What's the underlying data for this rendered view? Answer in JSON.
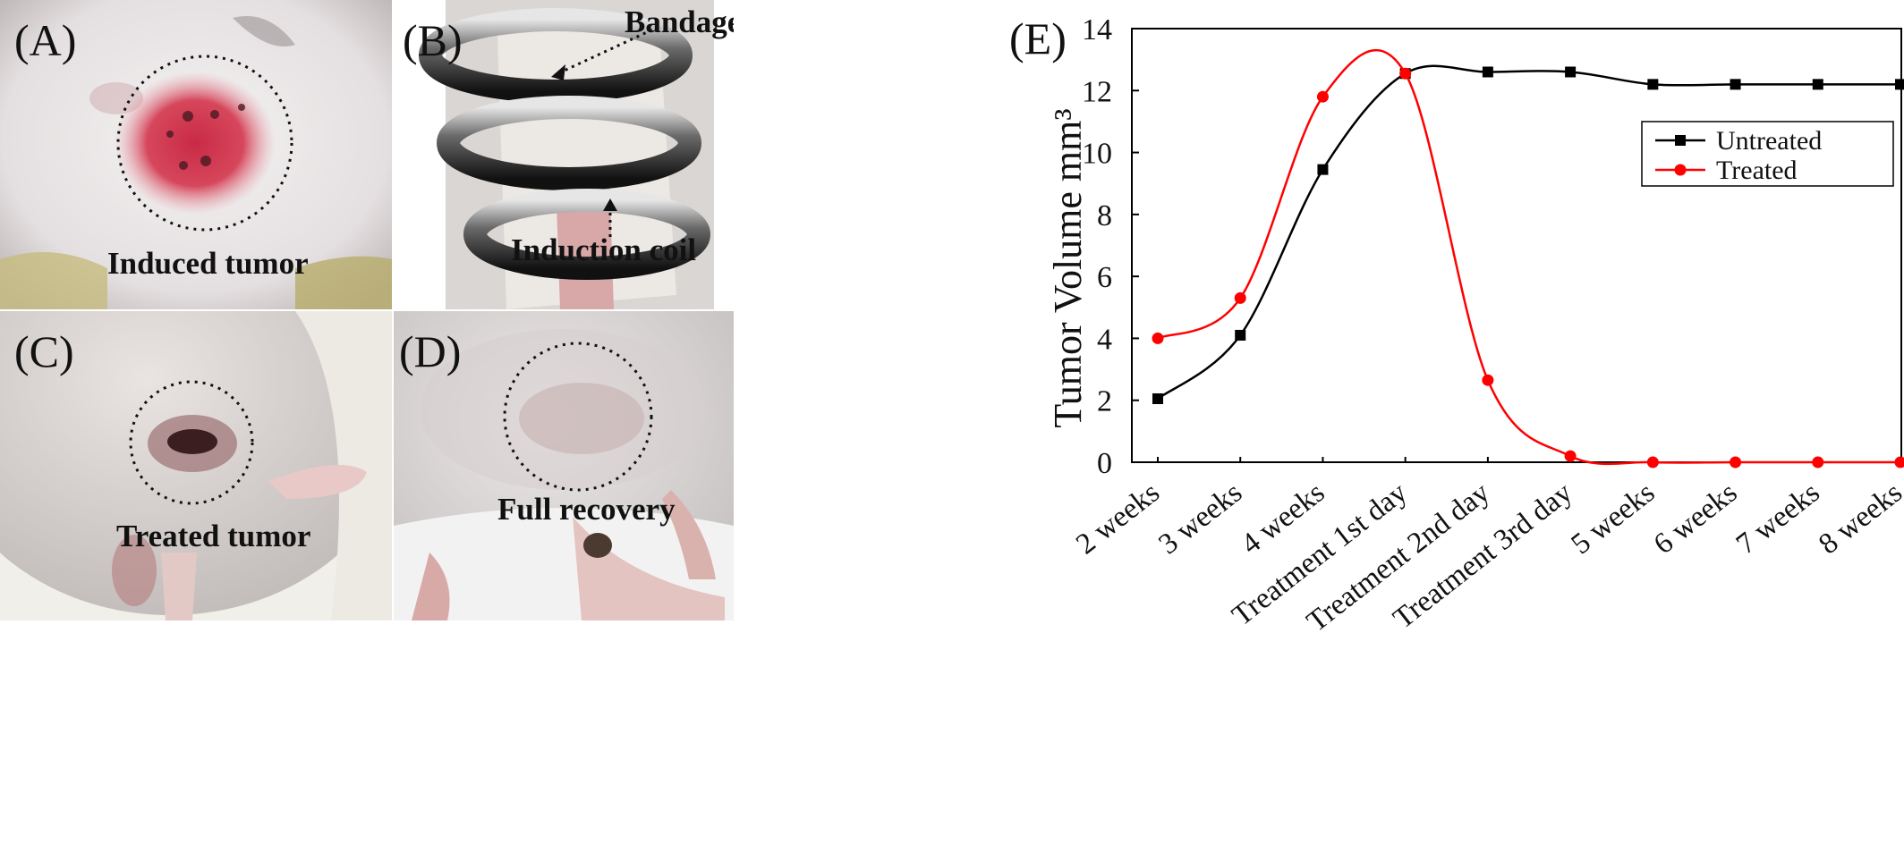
{
  "panels": {
    "a": {
      "label": "(A)",
      "caption": "Induced tumor"
    },
    "b": {
      "label": "(B)",
      "caption_bandage": "Bandage",
      "caption_coil": "Induction coil"
    },
    "c": {
      "label": "(C)",
      "caption": "Treated tumor"
    },
    "d": {
      "label": "(D)",
      "caption": "Full recovery"
    },
    "e": {
      "label": "(E)"
    }
  },
  "chart_data": {
    "type": "line",
    "ylabel": "Tumor Volume mm³",
    "xlabel": "",
    "ylim": [
      0,
      14
    ],
    "yticks": [
      0,
      2,
      4,
      6,
      8,
      10,
      12,
      14
    ],
    "categories": [
      "2 weeks",
      "3 weeks",
      "4 weeks",
      "Treatment 1st day",
      "Treatment 2nd day",
      "Treatment 3rd day",
      "5 weeks",
      "6 weeks",
      "7 weeks",
      "8 weeks"
    ],
    "legend_position": "right",
    "series": [
      {
        "name": "Untreated",
        "color": "#000000",
        "marker": "square",
        "values": [
          2.05,
          4.1,
          9.45,
          12.55,
          12.6,
          12.6,
          12.2,
          12.2,
          12.2,
          12.2
        ]
      },
      {
        "name": "Treated",
        "color": "#ff0000",
        "marker": "circle",
        "values": [
          4.0,
          5.3,
          11.8,
          12.55,
          2.65,
          0.2,
          0.0,
          0.0,
          0.0,
          0.0
        ]
      }
    ]
  }
}
